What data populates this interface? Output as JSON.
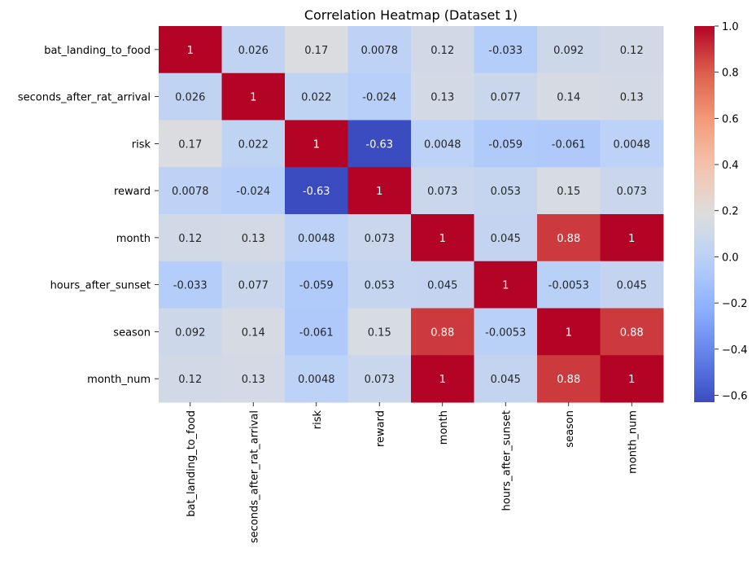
{
  "chart_data": {
    "type": "heatmap",
    "title": "Correlation Heatmap (Dataset 1)",
    "rows": [
      "bat_landing_to_food",
      "seconds_after_rat_arrival",
      "risk",
      "reward",
      "month",
      "hours_after_sunset",
      "season",
      "month_num"
    ],
    "columns": [
      "bat_landing_to_food",
      "seconds_after_rat_arrival",
      "risk",
      "reward",
      "month",
      "hours_after_sunset",
      "season",
      "month_num"
    ],
    "values": [
      [
        1,
        0.026,
        0.17,
        0.0078,
        0.12,
        -0.033,
        0.092,
        0.12
      ],
      [
        0.026,
        1,
        0.022,
        -0.024,
        0.13,
        0.077,
        0.14,
        0.13
      ],
      [
        0.17,
        0.022,
        1,
        -0.63,
        0.0048,
        -0.059,
        -0.061,
        0.0048
      ],
      [
        0.0078,
        -0.024,
        -0.63,
        1,
        0.073,
        0.053,
        0.15,
        0.073
      ],
      [
        0.12,
        0.13,
        0.0048,
        0.073,
        1,
        0.045,
        0.88,
        1
      ],
      [
        -0.033,
        0.077,
        -0.059,
        0.053,
        0.045,
        1,
        -0.0053,
        0.045
      ],
      [
        0.092,
        0.14,
        -0.061,
        0.15,
        0.88,
        -0.0053,
        1,
        0.88
      ],
      [
        0.12,
        0.13,
        0.0048,
        0.073,
        1,
        0.045,
        0.88,
        1
      ]
    ],
    "value_labels": [
      [
        "1",
        "0.026",
        "0.17",
        "0.0078",
        "0.12",
        "-0.033",
        "0.092",
        "0.12"
      ],
      [
        "0.026",
        "1",
        "0.022",
        "-0.024",
        "0.13",
        "0.077",
        "0.14",
        "0.13"
      ],
      [
        "0.17",
        "0.022",
        "1",
        "-0.63",
        "0.0048",
        "-0.059",
        "-0.061",
        "0.0048"
      ],
      [
        "0.0078",
        "-0.024",
        "-0.63",
        "1",
        "0.073",
        "0.053",
        "0.15",
        "0.073"
      ],
      [
        "0.12",
        "0.13",
        "0.0048",
        "0.073",
        "1",
        "0.045",
        "0.88",
        "1"
      ],
      [
        "-0.033",
        "0.077",
        "-0.059",
        "0.053",
        "0.045",
        "1",
        "-0.0053",
        "0.045"
      ],
      [
        "0.092",
        "0.14",
        "-0.061",
        "0.15",
        "0.88",
        "-0.0053",
        "1",
        "0.88"
      ],
      [
        "0.12",
        "0.13",
        "0.0048",
        "0.073",
        "1",
        "0.045",
        "0.88",
        "1"
      ]
    ],
    "colormap": "coolwarm",
    "vmin": -0.63,
    "vmax": 1.0,
    "colorbar": {
      "ticks": [
        1.0,
        0.8,
        0.6,
        0.4,
        0.2,
        0.0,
        -0.2,
        -0.4,
        -0.6
      ],
      "tick_labels": [
        "1.0",
        "0.8",
        "0.6",
        "0.4",
        "0.2",
        "0.0",
        "−0.2",
        "−0.4",
        "−0.6"
      ]
    }
  }
}
